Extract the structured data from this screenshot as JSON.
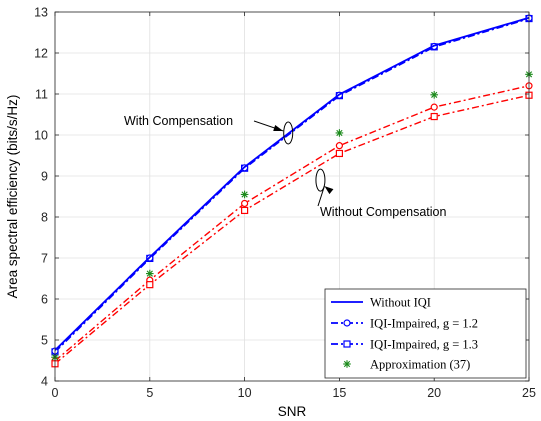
{
  "chart_data": {
    "type": "line",
    "xlabel": "SNR",
    "ylabel": "Area spectral efficiency (bits/s/Hz)",
    "xlim": [
      0,
      25
    ],
    "ylim": [
      4,
      13
    ],
    "xticks": [
      0,
      5,
      10,
      15,
      20,
      25
    ],
    "yticks": [
      4,
      5,
      6,
      7,
      8,
      9,
      10,
      11,
      12,
      13
    ],
    "grid": true,
    "legend_position": "bottom-right",
    "x": [
      0,
      5,
      10,
      15,
      20,
      25
    ],
    "series": [
      {
        "name": "Without IQI",
        "values": [
          4.75,
          7.02,
          9.22,
          10.99,
          12.18,
          12.86
        ],
        "color": "#0000ff",
        "style": "solid",
        "marker": "none"
      },
      {
        "name": "IQI-Impaired, g = 1.2",
        "values": [
          4.49,
          6.46,
          8.33,
          9.74,
          10.68,
          11.2
        ],
        "color": "#0000ff",
        "style": "dashdot",
        "marker": "circle",
        "color_alt": "#ff0000"
      },
      {
        "name": "IQI-Impaired, g = 1.3",
        "values": [
          4.42,
          6.35,
          8.16,
          9.55,
          10.45,
          10.97
        ],
        "color": "#0000ff",
        "style": "dashdot",
        "marker": "square",
        "color_alt": "#ff0000"
      },
      {
        "name": "Approximation (37)",
        "values": [
          4.58,
          6.62,
          8.55,
          10.05,
          10.98,
          11.48
        ],
        "color": "#1a8a1a",
        "style": "none",
        "marker": "asterisk"
      }
    ],
    "compensated_series": {
      "g12": [
        4.73,
        7.0,
        9.2,
        10.97,
        12.16,
        12.85
      ],
      "g13": [
        4.71,
        6.99,
        9.19,
        10.96,
        12.15,
        12.84
      ]
    },
    "annotations": [
      {
        "text": "With Compensation",
        "x": 12.3,
        "y": 10.05
      },
      {
        "text": "Without Compensation",
        "x": 14.0,
        "y": 8.9
      }
    ],
    "legend": {
      "entries": [
        "Without IQI",
        "IQI-Impaired, g = 1.2",
        "IQI-Impaired, g = 1.3",
        "Approximation (37)"
      ]
    }
  }
}
